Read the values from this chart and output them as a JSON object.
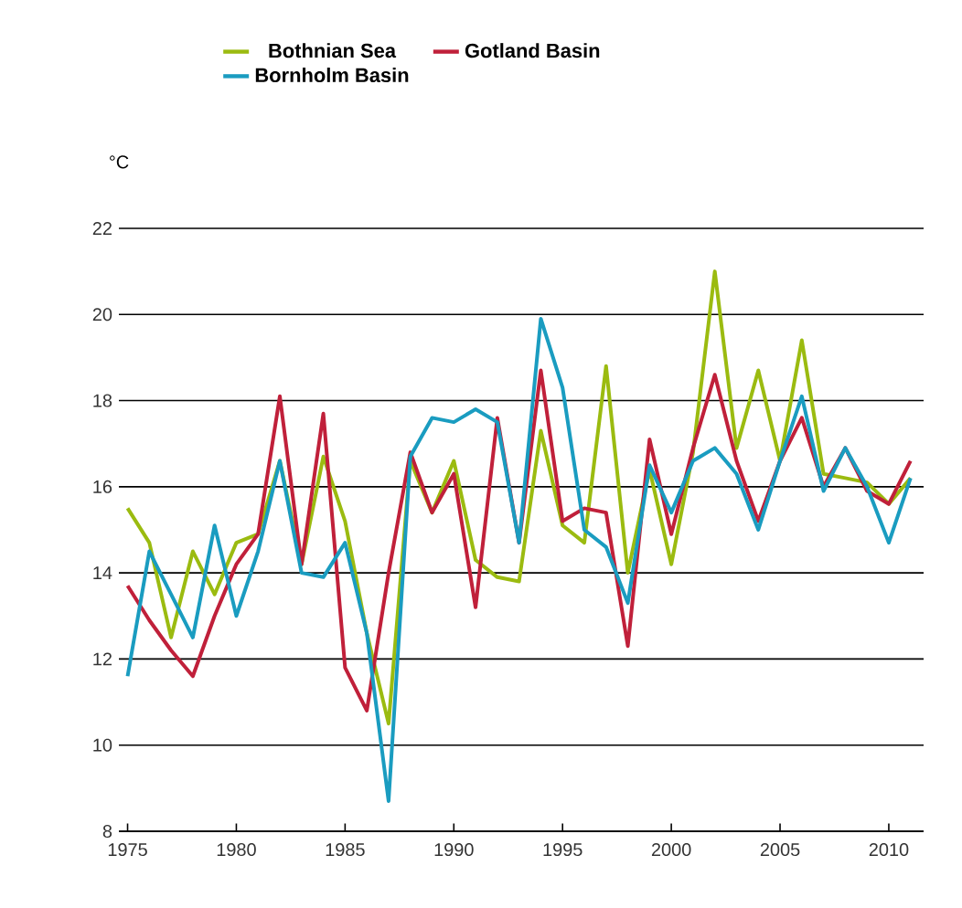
{
  "chart_data": {
    "type": "line",
    "ylabel": "°C",
    "legend": "top",
    "grid": "y",
    "marker": "none",
    "line_style": "solid",
    "x": [
      1975,
      1976,
      1977,
      1978,
      1979,
      1980,
      1981,
      1982,
      1983,
      1984,
      1985,
      1986,
      1987,
      1988,
      1989,
      1990,
      1991,
      1992,
      1993,
      1994,
      1995,
      1996,
      1997,
      1998,
      1999,
      2000,
      2001,
      2002,
      2003,
      2004,
      2005,
      2006,
      2007,
      2008,
      2009,
      2010,
      2011
    ],
    "xlim": [
      1974.6,
      2011.6
    ],
    "xticks": [
      1975,
      1980,
      1985,
      1990,
      1995,
      2000,
      2005,
      2010
    ],
    "ylim": [
      8,
      22
    ],
    "yticks": [
      8,
      10,
      12,
      14,
      16,
      18,
      20,
      22
    ],
    "series": [
      {
        "name": "Bothnian Sea",
        "color": "#9bbb10",
        "values": [
          15.5,
          14.7,
          12.5,
          14.5,
          13.5,
          14.7,
          14.9,
          16.6,
          14.2,
          16.7,
          15.2,
          12.6,
          10.5,
          16.6,
          15.4,
          16.6,
          14.3,
          13.9,
          13.8,
          17.3,
          15.1,
          14.7,
          18.8,
          14.0,
          16.4,
          14.2,
          16.8,
          21.0,
          16.9,
          18.7,
          16.6,
          19.4,
          16.3,
          16.2,
          16.1,
          15.6,
          16.2
        ]
      },
      {
        "name": "Gotland Basin",
        "color": "#c0203a",
        "values": [
          13.7,
          12.9,
          12.2,
          11.6,
          13.0,
          14.2,
          14.9,
          18.1,
          14.2,
          17.7,
          11.8,
          10.8,
          14.0,
          16.8,
          15.4,
          16.3,
          13.2,
          17.6,
          14.7,
          18.7,
          15.2,
          15.5,
          15.4,
          12.3,
          17.1,
          14.9,
          16.9,
          18.6,
          16.6,
          15.2,
          16.6,
          17.6,
          16.0,
          16.9,
          15.9,
          15.6,
          16.6
        ]
      },
      {
        "name": "Bornholm Basin",
        "color": "#1a9cc0",
        "values": [
          11.6,
          14.5,
          13.5,
          12.5,
          15.1,
          13.0,
          14.5,
          16.6,
          14.0,
          13.9,
          14.7,
          12.6,
          8.7,
          16.7,
          17.6,
          17.5,
          17.8,
          17.5,
          14.7,
          19.9,
          18.3,
          15.0,
          14.6,
          13.3,
          16.5,
          15.4,
          16.6,
          16.9,
          16.3,
          15.0,
          16.6,
          18.1,
          15.9,
          16.9,
          16.0,
          14.7,
          16.2
        ]
      }
    ]
  }
}
